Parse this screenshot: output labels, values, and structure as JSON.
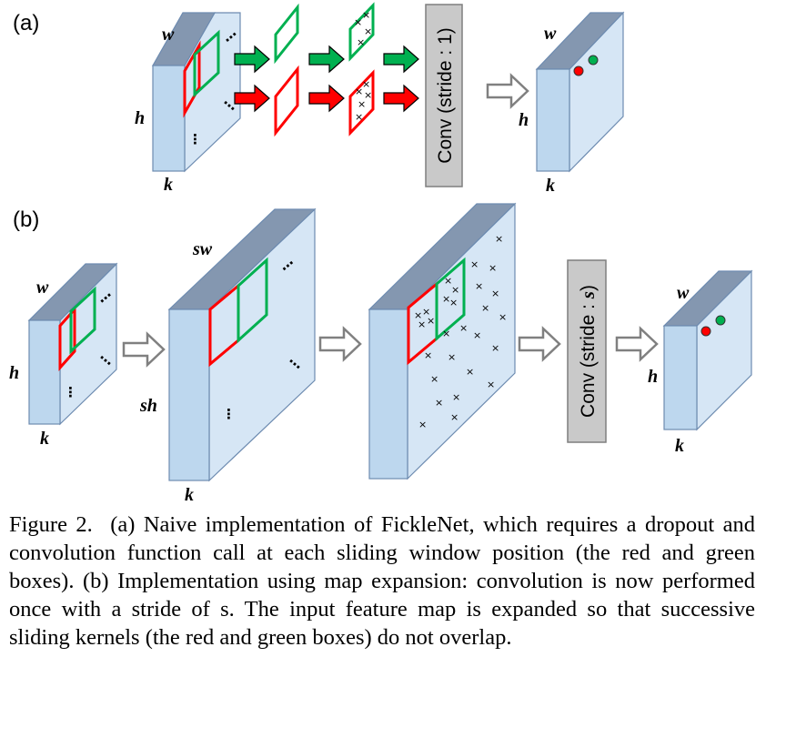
{
  "panels": {
    "a": {
      "label": "(a)",
      "input": {
        "w": "w",
        "h": "h",
        "k": "k"
      },
      "conv_label": "Conv (stride : 1)",
      "output": {
        "w": "w",
        "h": "h",
        "k": "k"
      }
    },
    "b": {
      "label": "(b)",
      "input": {
        "w": "w",
        "h": "h",
        "k": "k"
      },
      "expanded": {
        "sw": "sw",
        "sh": "sh",
        "k": "k"
      },
      "conv_label": "Conv (stride : s)",
      "output": {
        "w": "w",
        "h": "h",
        "k": "k"
      }
    }
  },
  "caption": {
    "figure_label": "Figure 2.",
    "text": "(a) Naive implementation of FickleNet, which requires a dropout and convolution function call at each sliding window position (the red and green boxes). (b) Implementation using map expansion: convolution is now performed once with a stride of s. The input feature map is expanded so that successive sliding kernels (the red and green boxes) do not overlap."
  },
  "colors": {
    "front_face": "#bdd7ee",
    "top_face": "#8497b0",
    "side_face": "#d6e6f5",
    "red_box": "#ff0000",
    "green_box": "#00b050",
    "conv_box": "#c9c9c9"
  }
}
